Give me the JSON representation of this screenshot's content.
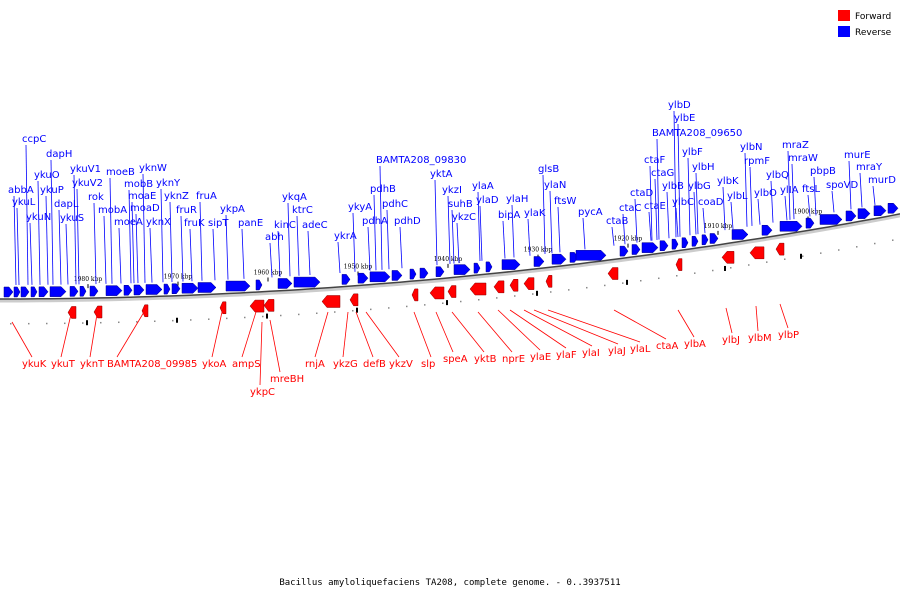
{
  "legend": [
    {
      "label": "Forward",
      "color": "#ff0000"
    },
    {
      "label": "Reverse",
      "color": "#0000ff"
    }
  ],
  "caption": "Bacillus amyloliquefaciens TA208, complete genome. - 0..3937511",
  "colors": {
    "forward": "#ff0000",
    "reverse": "#0000ff",
    "backbone": "#999999"
  },
  "ticks": [
    "1980 kbp",
    "1970 kbp",
    "1960 kbp",
    "1950 kbp",
    "1940 kbp",
    "1930 kbp",
    "1920 kbp",
    "1910 kbp",
    "1900 kbp"
  ],
  "reverse_labels": [
    "ccpC",
    "dapH",
    "abbA",
    "ykuO",
    "ykuL",
    "ykuP",
    "ykuN",
    "dapL",
    "ykuS",
    "ykuV1",
    "ykuV2",
    "rok",
    "moeB",
    "mobB",
    "mobA",
    "moaE",
    "moeA",
    "moaD",
    "yknW",
    "yknY",
    "yknZ",
    "yknX",
    "fruR",
    "fruK",
    "fruA",
    "sipT",
    "ykpA",
    "panE",
    "abh",
    "ykqA",
    "kinC",
    "ktrC",
    "adeC",
    "ykrA",
    "ykyA",
    "pdhA",
    "pdhB",
    "pdhC",
    "pdhD",
    "BAMTA208_09830",
    "yktA",
    "ykzI",
    "suhB",
    "ykzC",
    "ylaA",
    "ylaD",
    "bipA",
    "ylaH",
    "ylaK",
    "glsB",
    "ylaN",
    "ftsW",
    "pycA",
    "ctaB",
    "ctaC",
    "ctaD",
    "ctaF",
    "ctaG",
    "ctaE",
    "ylbD",
    "ylbE",
    "BAMTA208_09650",
    "ylbF",
    "ylbH",
    "ylbB",
    "ylbG",
    "ylbC",
    "coaD",
    "ylbK",
    "ylbL",
    "ylbN",
    "rpmF",
    "ylbO",
    "ylbQ",
    "mraZ",
    "mraW",
    "ylIA",
    "ftsL",
    "pbpB",
    "murE",
    "spoVD",
    "mraY",
    "murD"
  ],
  "forward_labels": [
    "ykuK",
    "ykuT",
    "yknT",
    "BAMTA208_09985",
    "ykoA",
    "ampS",
    "ykpC",
    "mreBH",
    "rnjA",
    "ykzG",
    "defB",
    "ykzV",
    "slp",
    "speA",
    "yktB",
    "nprE",
    "ylaE",
    "ylaF",
    "ylaI",
    "ylaJ",
    "ylaL",
    "ctaA",
    "ylbA",
    "ylbJ",
    "ylbM",
    "ylbP"
  ]
}
